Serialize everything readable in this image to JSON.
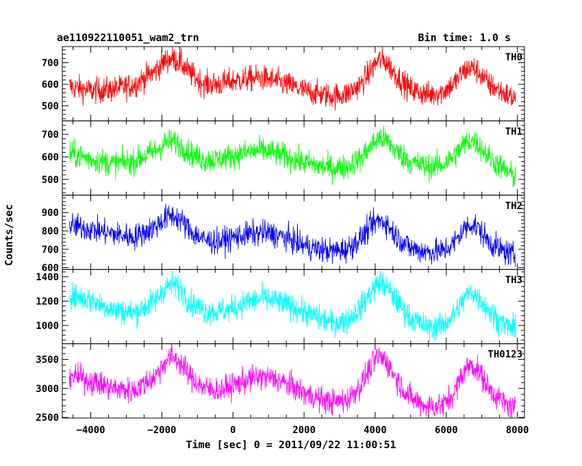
{
  "header": {
    "title": "ae110922110051_wam2_trn",
    "bin_time": "Bin time: 1.0 s"
  },
  "chart_data": {
    "type": "line",
    "xlabel": "Time [sec] 0 = 2011/09/22 11:00:51",
    "ylabel": "Counts/sec",
    "xlim": [
      -4800,
      8200
    ],
    "x_ticks": [
      -4000,
      -2000,
      0,
      2000,
      4000,
      6000,
      8000
    ],
    "x_tick_labels": [
      "−4000",
      "−2000",
      "0",
      "2000",
      "4000",
      "6000",
      "8000"
    ],
    "x_range_data": [
      -4600,
      7950
    ],
    "panels": [
      {
        "name": "TH0",
        "color": "#ff0000",
        "ylim": [
          430,
          775
        ],
        "y_ticks": [
          500,
          600,
          700
        ],
        "y_tick_labels": [
          "500",
          "600",
          "700"
        ],
        "points": [
          [
            -4600,
            590
          ],
          [
            -4000,
            570
          ],
          [
            -3400,
            575
          ],
          [
            -2800,
            595
          ],
          [
            -2200,
            660
          ],
          [
            -1900,
            710
          ],
          [
            -1700,
            720
          ],
          [
            -1500,
            705
          ],
          [
            -1200,
            650
          ],
          [
            -800,
            600
          ],
          [
            -400,
            600
          ],
          [
            0,
            615
          ],
          [
            400,
            625
          ],
          [
            800,
            630
          ],
          [
            1200,
            615
          ],
          [
            1600,
            595
          ],
          [
            2000,
            570
          ],
          [
            2400,
            555
          ],
          [
            2800,
            545
          ],
          [
            3200,
            555
          ],
          [
            3600,
            600
          ],
          [
            3900,
            670
          ],
          [
            4100,
            715
          ],
          [
            4300,
            705
          ],
          [
            4600,
            640
          ],
          [
            5000,
            575
          ],
          [
            5500,
            550
          ],
          [
            5900,
            565
          ],
          [
            6200,
            600
          ],
          [
            6500,
            660
          ],
          [
            6700,
            680
          ],
          [
            6900,
            660
          ],
          [
            7200,
            600
          ],
          [
            7600,
            560
          ],
          [
            7950,
            530
          ]
        ]
      },
      {
        "name": "TH1",
        "color": "#00ff00",
        "ylim": [
          430,
          760
        ],
        "y_ticks": [
          500,
          600,
          700
        ],
        "y_tick_labels": [
          "500",
          "600",
          "700"
        ],
        "points": [
          [
            -4600,
            615
          ],
          [
            -4000,
            590
          ],
          [
            -3400,
            570
          ],
          [
            -2800,
            580
          ],
          [
            -2200,
            625
          ],
          [
            -1900,
            660
          ],
          [
            -1700,
            670
          ],
          [
            -1500,
            655
          ],
          [
            -1200,
            615
          ],
          [
            -800,
            585
          ],
          [
            -400,
            590
          ],
          [
            0,
            605
          ],
          [
            400,
            620
          ],
          [
            800,
            630
          ],
          [
            1200,
            615
          ],
          [
            1600,
            595
          ],
          [
            2000,
            575
          ],
          [
            2400,
            560
          ],
          [
            2800,
            550
          ],
          [
            3200,
            555
          ],
          [
            3600,
            595
          ],
          [
            3900,
            650
          ],
          [
            4100,
            685
          ],
          [
            4300,
            675
          ],
          [
            4600,
            625
          ],
          [
            5000,
            575
          ],
          [
            5500,
            555
          ],
          [
            5900,
            565
          ],
          [
            6200,
            600
          ],
          [
            6500,
            655
          ],
          [
            6700,
            675
          ],
          [
            6900,
            655
          ],
          [
            7200,
            600
          ],
          [
            7600,
            545
          ],
          [
            7950,
            510
          ]
        ]
      },
      {
        "name": "TH2",
        "color": "#0000ff",
        "ylim": [
          590,
          995
        ],
        "y_ticks": [
          600,
          700,
          800,
          900
        ],
        "y_tick_labels": [
          "600",
          "700",
          "800",
          "900"
        ],
        "points": [
          [
            -4600,
            830
          ],
          [
            -4000,
            810
          ],
          [
            -3400,
            785
          ],
          [
            -2800,
            765
          ],
          [
            -2200,
            820
          ],
          [
            -1900,
            870
          ],
          [
            -1700,
            885
          ],
          [
            -1500,
            865
          ],
          [
            -1200,
            800
          ],
          [
            -800,
            750
          ],
          [
            -400,
            740
          ],
          [
            0,
            765
          ],
          [
            400,
            780
          ],
          [
            800,
            790
          ],
          [
            1200,
            780
          ],
          [
            1600,
            755
          ],
          [
            2000,
            720
          ],
          [
            2400,
            700
          ],
          [
            2800,
            690
          ],
          [
            3200,
            700
          ],
          [
            3600,
            760
          ],
          [
            3900,
            830
          ],
          [
            4100,
            860
          ],
          [
            4300,
            845
          ],
          [
            4600,
            770
          ],
          [
            5000,
            705
          ],
          [
            5500,
            685
          ],
          [
            5900,
            690
          ],
          [
            6200,
            730
          ],
          [
            6500,
            810
          ],
          [
            6700,
            840
          ],
          [
            6900,
            815
          ],
          [
            7200,
            740
          ],
          [
            7600,
            690
          ],
          [
            7950,
            660
          ]
        ]
      },
      {
        "name": "TH3",
        "color": "#00ffff",
        "ylim": [
          850,
          1460
        ],
        "y_ticks": [
          1000,
          1200,
          1400
        ],
        "y_tick_labels": [
          "1000",
          "1200",
          "1400"
        ],
        "points": [
          [
            -4600,
            1250
          ],
          [
            -4000,
            1210
          ],
          [
            -3400,
            1130
          ],
          [
            -2800,
            1100
          ],
          [
            -2200,
            1200
          ],
          [
            -1900,
            1310
          ],
          [
            -1700,
            1340
          ],
          [
            -1500,
            1310
          ],
          [
            -1200,
            1190
          ],
          [
            -800,
            1120
          ],
          [
            -400,
            1110
          ],
          [
            0,
            1140
          ],
          [
            400,
            1190
          ],
          [
            800,
            1220
          ],
          [
            1200,
            1200
          ],
          [
            1600,
            1160
          ],
          [
            2000,
            1110
          ],
          [
            2400,
            1060
          ],
          [
            2800,
            1020
          ],
          [
            3200,
            1040
          ],
          [
            3600,
            1150
          ],
          [
            3900,
            1280
          ],
          [
            4100,
            1350
          ],
          [
            4300,
            1320
          ],
          [
            4600,
            1200
          ],
          [
            5000,
            1060
          ],
          [
            5500,
            980
          ],
          [
            5900,
            1000
          ],
          [
            6200,
            1080
          ],
          [
            6500,
            1220
          ],
          [
            6700,
            1280
          ],
          [
            6900,
            1230
          ],
          [
            7200,
            1120
          ],
          [
            7600,
            1010
          ],
          [
            7950,
            960
          ]
        ]
      },
      {
        "name": "TH0123",
        "color": "#ff00ff",
        "ylim": [
          2490,
          3770
        ],
        "y_ticks": [
          2500,
          3000,
          3500
        ],
        "y_tick_labels": [
          "2500",
          "3000",
          "3500"
        ],
        "points": [
          [
            -4600,
            3230
          ],
          [
            -4000,
            3130
          ],
          [
            -3400,
            3000
          ],
          [
            -2800,
            2960
          ],
          [
            -2200,
            3200
          ],
          [
            -1900,
            3470
          ],
          [
            -1700,
            3550
          ],
          [
            -1500,
            3460
          ],
          [
            -1200,
            3200
          ],
          [
            -800,
            3000
          ],
          [
            -400,
            2970
          ],
          [
            0,
            3040
          ],
          [
            400,
            3150
          ],
          [
            800,
            3200
          ],
          [
            1200,
            3160
          ],
          [
            1600,
            3050
          ],
          [
            2000,
            2920
          ],
          [
            2400,
            2820
          ],
          [
            2800,
            2760
          ],
          [
            3200,
            2800
          ],
          [
            3600,
            3060
          ],
          [
            3900,
            3400
          ],
          [
            4100,
            3560
          ],
          [
            4300,
            3480
          ],
          [
            4600,
            3160
          ],
          [
            5000,
            2830
          ],
          [
            5500,
            2680
          ],
          [
            5900,
            2710
          ],
          [
            6200,
            2900
          ],
          [
            6500,
            3300
          ],
          [
            6700,
            3420
          ],
          [
            6900,
            3300
          ],
          [
            7200,
            3000
          ],
          [
            7600,
            2760
          ],
          [
            7950,
            2630
          ]
        ]
      }
    ]
  }
}
